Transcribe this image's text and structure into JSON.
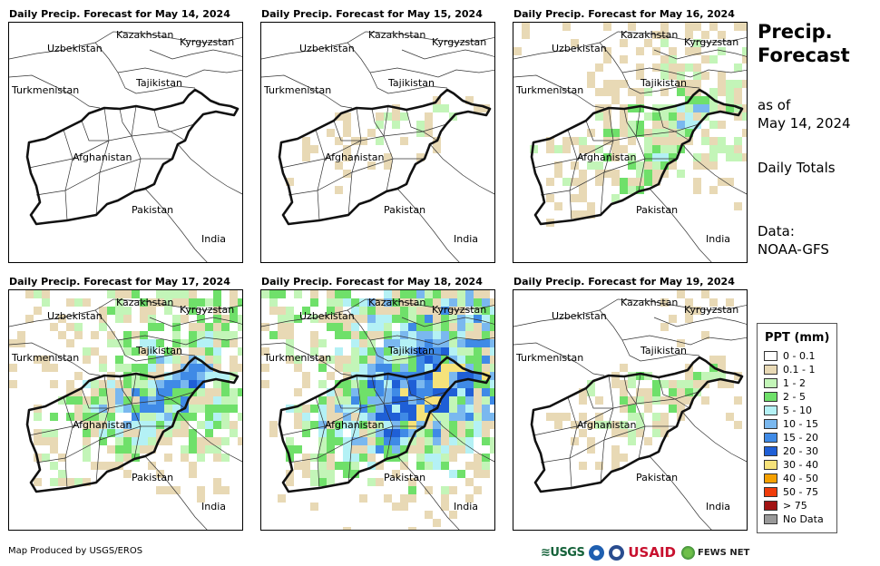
{
  "panels": [
    {
      "title": "Daily Precip. Forecast for May 14, 2024"
    },
    {
      "title": "Daily Precip. Forecast for May 15, 2024"
    },
    {
      "title": "Daily Precip. Forecast for May 16, 2024"
    },
    {
      "title": "Daily Precip. Forecast for May 17, 2024"
    },
    {
      "title": "Daily Precip. Forecast for May 18, 2024"
    },
    {
      "title": "Daily Precip. Forecast for May 19, 2024"
    }
  ],
  "map_labels": {
    "kazakhstan": "Kazakhstan",
    "kyrgyzstan": "Kyrgyzstan",
    "uzbekistan": "Uzbekistan",
    "tajikistan": "Tajikistan",
    "turkmenistan": "Turkmenistan",
    "afghanistan": "Afghanistan",
    "pakistan": "Pakistan",
    "india": "India"
  },
  "side": {
    "title": "Precip.\nForecast",
    "as_of": "as of\nMay 14, 2024",
    "totals": "Daily Totals",
    "source": "Data:\nNOAA-GFS"
  },
  "legend": {
    "title": "PPT (mm)",
    "items": [
      {
        "label": "0 - 0.1",
        "color": "#ffffff"
      },
      {
        "label": "0.1 - 1",
        "color": "#e8d9b5"
      },
      {
        "label": "1 - 2",
        "color": "#c3f5b8"
      },
      {
        "label": "2 - 5",
        "color": "#6fe06a"
      },
      {
        "label": "5 - 10",
        "color": "#b4f1f5"
      },
      {
        "label": "10 - 15",
        "color": "#7ab8ef"
      },
      {
        "label": "15 - 20",
        "color": "#3f8ae6"
      },
      {
        "label": "20 - 30",
        "color": "#1f5fd6"
      },
      {
        "label": "30 - 40",
        "color": "#f6e27a"
      },
      {
        "label": "40 - 50",
        "color": "#f5a000"
      },
      {
        "label": "50 - 75",
        "color": "#f03c0a"
      },
      {
        "label": "> 75",
        "color": "#a11313"
      },
      {
        "label": "No Data",
        "color": "#999999"
      }
    ]
  },
  "credit": "Map Produced by USGS/EROS",
  "logos": {
    "usgs": "≋USGS",
    "usaid": "USAID",
    "fews": "FEWS NET"
  }
}
